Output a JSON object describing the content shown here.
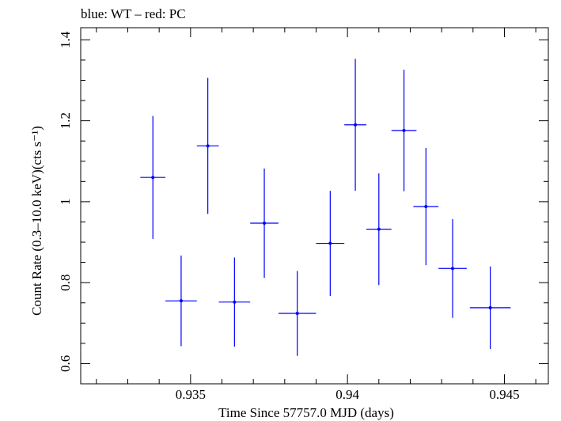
{
  "chart_data": {
    "type": "scatter",
    "title": "blue: WT – red: PC",
    "xlabel": "Time Since 57757.0 MJD (days)",
    "ylabel": "Count Rate (0.3–10.0 keV)(cts s⁻¹)",
    "xlim": [
      0.9315,
      0.9464
    ],
    "ylim": [
      0.55,
      1.43
    ],
    "xticks": [
      0.935,
      0.94,
      0.945
    ],
    "xtick_labels": [
      "0.935",
      "0.94",
      "0.945"
    ],
    "yticks": [
      0.6,
      0.8,
      1.0,
      1.2,
      1.4
    ],
    "ytick_labels": [
      "0.6",
      "0.8",
      "1",
      "1.2",
      "1.4"
    ],
    "grid": false,
    "series": [
      {
        "name": "WT",
        "color": "#0000ff",
        "points": [
          {
            "x": 0.9338,
            "y": 1.06,
            "xerr": 0.0004,
            "yerr": 0.152
          },
          {
            "x": 0.9347,
            "y": 0.755,
            "xerr": 0.0005,
            "yerr": 0.112
          },
          {
            "x": 0.93555,
            "y": 1.138,
            "xerr": 0.00035,
            "yerr": 0.168
          },
          {
            "x": 0.9364,
            "y": 0.752,
            "xerr": 0.0005,
            "yerr": 0.11
          },
          {
            "x": 0.93735,
            "y": 0.947,
            "xerr": 0.00045,
            "yerr": 0.135
          },
          {
            "x": 0.9384,
            "y": 0.724,
            "xerr": 0.0006,
            "yerr": 0.105
          },
          {
            "x": 0.93945,
            "y": 0.897,
            "xerr": 0.00045,
            "yerr": 0.13
          },
          {
            "x": 0.94025,
            "y": 1.19,
            "xerr": 0.00035,
            "yerr": 0.163
          },
          {
            "x": 0.941,
            "y": 0.932,
            "xerr": 0.0004,
            "yerr": 0.138
          },
          {
            "x": 0.9418,
            "y": 1.176,
            "xerr": 0.0004,
            "yerr": 0.15
          },
          {
            "x": 0.9425,
            "y": 0.988,
            "xerr": 0.0004,
            "yerr": 0.145
          },
          {
            "x": 0.94335,
            "y": 0.835,
            "xerr": 0.00045,
            "yerr": 0.122
          },
          {
            "x": 0.94455,
            "y": 0.738,
            "xerr": 0.00065,
            "yerr": 0.102
          }
        ]
      }
    ]
  }
}
